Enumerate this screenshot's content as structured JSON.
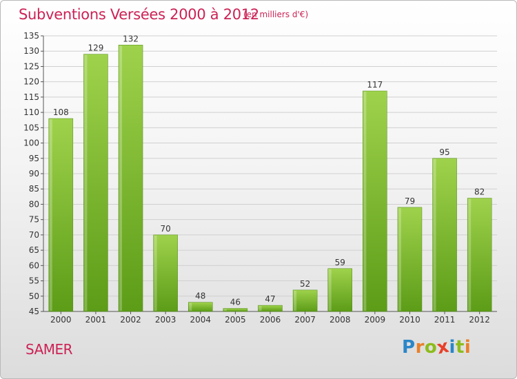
{
  "header": {
    "title": "Subventions Versées 2000 à 2012",
    "unit": "(en milliers d'€)"
  },
  "footer": {
    "commune": "SAMER",
    "logo": {
      "letters": [
        "P",
        "r",
        "o",
        "x",
        "i",
        "t",
        "i"
      ],
      "colors": [
        "#2a86c8",
        "#e8802a",
        "#8cbc1c",
        "#e8402a",
        "#2a86c8",
        "#8cbc1c",
        "#e8802a"
      ]
    }
  },
  "chart_data": {
    "type": "bar",
    "title": "Subventions Versées 2000 à 2012",
    "subtitle": "(en milliers d'€)",
    "xlabel": "",
    "ylabel": "",
    "categories": [
      "2000",
      "2001",
      "2002",
      "2003",
      "2004",
      "2005",
      "2006",
      "2007",
      "2008",
      "2009",
      "2010",
      "2011",
      "2012"
    ],
    "values": [
      108,
      129,
      132,
      70,
      48,
      46,
      47,
      52,
      59,
      117,
      79,
      95,
      82
    ],
    "ylim": [
      45,
      135
    ],
    "yticks": [
      45,
      50,
      55,
      60,
      65,
      70,
      75,
      80,
      85,
      90,
      95,
      100,
      105,
      110,
      115,
      120,
      125,
      130,
      135
    ],
    "grid": true,
    "bar_color": "#8cc63f",
    "bar_color_dark": "#5a9a16"
  }
}
